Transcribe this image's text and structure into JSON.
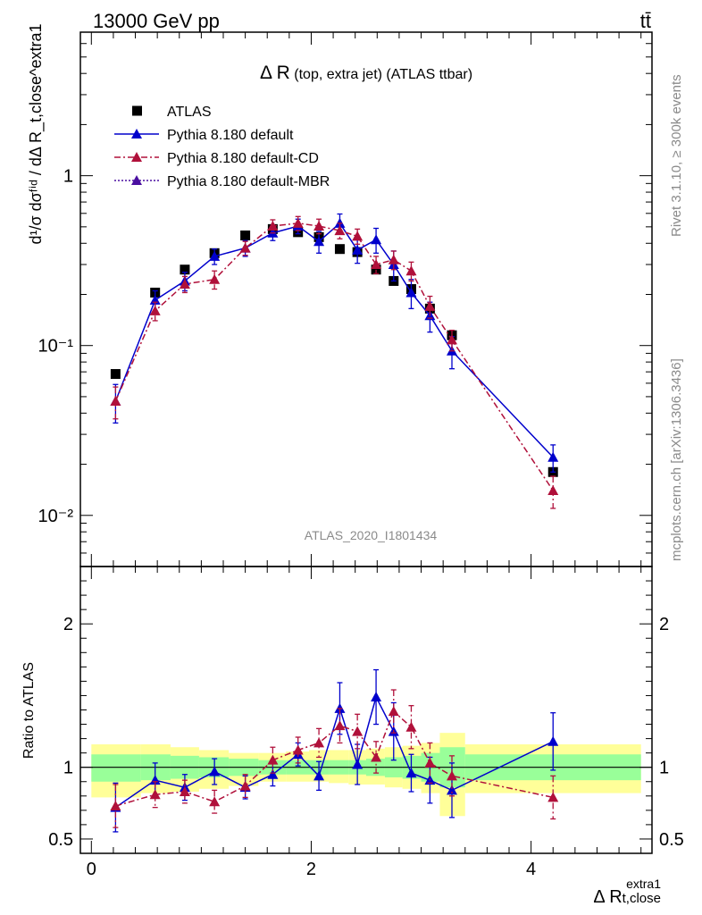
{
  "header": {
    "left": "13000 GeV pp",
    "right": "tt̄"
  },
  "side": {
    "rivet": "Rivet 3.1.10, ≥ 300k events",
    "url": "mcplots.cern.ch [arXiv:1306.3436]"
  },
  "chart_data": [
    {
      "type": "scatter",
      "panel": "main",
      "title_main": "Δ R",
      "title_sub": " (top, extra jet)",
      "title_tail": " (ATLAS ttbar)",
      "ylabel": "d¹/σ dσᶠⁱᵈ / dΔ R_t,close^extra1",
      "yscale": "log",
      "ylim": [
        0.005,
        7
      ],
      "xlim": [
        -0.1,
        5.1
      ],
      "yticks": [
        {
          "value": 1,
          "label": "1"
        },
        {
          "value": 0.1,
          "label": "10⁻¹"
        },
        {
          "value": 0.01,
          "label": "10⁻²"
        }
      ],
      "analysis_label": "ATLAS_2020_I1801434",
      "legend_position": "top-left",
      "x": [
        0.22,
        0.58,
        0.85,
        1.12,
        1.4,
        1.65,
        1.88,
        2.07,
        2.26,
        2.42,
        2.59,
        2.75,
        2.91,
        3.08,
        3.28,
        4.2
      ],
      "series": [
        {
          "name": "ATLAS",
          "marker": "square",
          "color": "#000000",
          "values": [
            0.068,
            0.205,
            0.28,
            0.35,
            0.445,
            0.485,
            0.465,
            0.435,
            0.37,
            0.355,
            0.28,
            0.24,
            0.215,
            0.165,
            0.115,
            0.018
          ],
          "errors": [
            0.003,
            0.006,
            0.008,
            0.01,
            0.012,
            0.012,
            0.012,
            0.012,
            0.01,
            0.01,
            0.008,
            0.007,
            0.006,
            0.005,
            0.004,
            0.001
          ]
        },
        {
          "name": "Pythia 8.180 default",
          "marker": "triangle",
          "color": "#0000cc",
          "line": "solid",
          "values": [
            0.047,
            0.185,
            0.24,
            0.335,
            0.375,
            0.46,
            0.505,
            0.41,
            0.525,
            0.365,
            0.42,
            0.3,
            0.205,
            0.15,
            0.093,
            0.022
          ],
          "errors": [
            0.012,
            0.025,
            0.03,
            0.035,
            0.04,
            0.045,
            0.05,
            0.06,
            0.07,
            0.06,
            0.07,
            0.06,
            0.04,
            0.03,
            0.02,
            0.004
          ]
        },
        {
          "name": "Pythia 8.180 default-CD",
          "marker": "triangle",
          "color": "#b0103a",
          "line": "dashdot",
          "values": [
            0.047,
            0.16,
            0.23,
            0.245,
            0.375,
            0.505,
            0.525,
            0.505,
            0.475,
            0.44,
            0.3,
            0.32,
            0.275,
            0.17,
            0.108,
            0.014
          ],
          "errors": [
            0.01,
            0.02,
            0.025,
            0.03,
            0.035,
            0.045,
            0.05,
            0.05,
            0.05,
            0.045,
            0.035,
            0.04,
            0.035,
            0.025,
            0.015,
            0.003
          ]
        },
        {
          "name": "Pythia 8.180 default-MBR",
          "marker": "triangle",
          "color": "#4a0fa0",
          "line": "dotted",
          "values": []
        }
      ]
    },
    {
      "type": "scatter",
      "panel": "ratio",
      "ylabel": "Ratio to ATLAS",
      "xlabel_main": "Δ R",
      "xlabel_sub": "t,close",
      "xlabel_sup": "extra1",
      "ylim": [
        0.4,
        2.4
      ],
      "xlim": [
        -0.1,
        5.1
      ],
      "yticks": [
        {
          "value": 0.5,
          "label": "0.5"
        },
        {
          "value": 1,
          "label": "1"
        },
        {
          "value": 2,
          "label": "2"
        }
      ],
      "xticks": [
        {
          "value": 0,
          "label": "0"
        },
        {
          "value": 2,
          "label": "2"
        },
        {
          "value": 4,
          "label": "4"
        }
      ],
      "x": [
        0.22,
        0.58,
        0.85,
        1.12,
        1.4,
        1.65,
        1.88,
        2.07,
        2.26,
        2.42,
        2.59,
        2.75,
        2.91,
        3.08,
        3.28,
        4.2
      ],
      "bins": [
        {
          "x0": 0.0,
          "x1": 0.45,
          "green": [
            0.9,
            1.09
          ],
          "yellow": [
            0.79,
            1.16
          ]
        },
        {
          "x0": 0.45,
          "x1": 0.72,
          "green": [
            0.91,
            1.09
          ],
          "yellow": [
            0.82,
            1.16
          ]
        },
        {
          "x0": 0.72,
          "x1": 0.98,
          "green": [
            0.92,
            1.08
          ],
          "yellow": [
            0.83,
            1.14
          ]
        },
        {
          "x0": 0.98,
          "x1": 1.25,
          "green": [
            0.93,
            1.07
          ],
          "yellow": [
            0.85,
            1.12
          ]
        },
        {
          "x0": 1.25,
          "x1": 1.52,
          "green": [
            0.94,
            1.06
          ],
          "yellow": [
            0.87,
            1.1
          ]
        },
        {
          "x0": 1.52,
          "x1": 1.77,
          "green": [
            0.95,
            1.05
          ],
          "yellow": [
            0.9,
            1.1
          ]
        },
        {
          "x0": 1.77,
          "x1": 1.98,
          "green": [
            0.95,
            1.05
          ],
          "yellow": [
            0.9,
            1.11
          ]
        },
        {
          "x0": 1.98,
          "x1": 2.16,
          "green": [
            0.95,
            1.05
          ],
          "yellow": [
            0.9,
            1.12
          ]
        },
        {
          "x0": 2.16,
          "x1": 2.34,
          "green": [
            0.95,
            1.05
          ],
          "yellow": [
            0.89,
            1.12
          ]
        },
        {
          "x0": 2.34,
          "x1": 2.5,
          "green": [
            0.95,
            1.05
          ],
          "yellow": [
            0.88,
            1.12
          ]
        },
        {
          "x0": 2.5,
          "x1": 2.67,
          "green": [
            0.94,
            1.06
          ],
          "yellow": [
            0.88,
            1.13
          ]
        },
        {
          "x0": 2.67,
          "x1": 2.83,
          "green": [
            0.93,
            1.07
          ],
          "yellow": [
            0.86,
            1.14
          ]
        },
        {
          "x0": 2.83,
          "x1": 3.0,
          "green": [
            0.92,
            1.08
          ],
          "yellow": [
            0.85,
            1.15
          ]
        },
        {
          "x0": 3.0,
          "x1": 3.17,
          "green": [
            0.9,
            1.1
          ],
          "yellow": [
            0.82,
            1.17
          ]
        },
        {
          "x0": 3.17,
          "x1": 3.4,
          "green": [
            0.86,
            1.14
          ],
          "yellow": [
            0.66,
            1.24
          ]
        },
        {
          "x0": 3.4,
          "x1": 5.0,
          "green": [
            0.91,
            1.09
          ],
          "yellow": [
            0.82,
            1.16
          ]
        }
      ],
      "series": [
        {
          "name": "Pythia 8.180 default",
          "color": "#0000cc",
          "line": "solid",
          "values": [
            0.72,
            0.91,
            0.86,
            0.97,
            0.86,
            0.95,
            1.09,
            0.94,
            1.41,
            1.02,
            1.49,
            1.25,
            0.96,
            0.91,
            0.84,
            1.18
          ],
          "errors": [
            0.17,
            0.12,
            0.09,
            0.09,
            0.08,
            0.08,
            0.08,
            0.1,
            0.18,
            0.14,
            0.19,
            0.2,
            0.13,
            0.16,
            0.19,
            0.2
          ]
        },
        {
          "name": "Pythia 8.180 default-CD",
          "color": "#b0103a",
          "line": "dashdot",
          "values": [
            0.73,
            0.81,
            0.83,
            0.76,
            0.87,
            1.05,
            1.12,
            1.17,
            1.29,
            1.25,
            1.07,
            1.39,
            1.28,
            1.03,
            0.94,
            0.79
          ],
          "errors": [
            0.15,
            0.09,
            0.08,
            0.08,
            0.08,
            0.09,
            0.09,
            0.1,
            0.12,
            0.12,
            0.11,
            0.15,
            0.15,
            0.14,
            0.14,
            0.15
          ]
        }
      ]
    }
  ]
}
